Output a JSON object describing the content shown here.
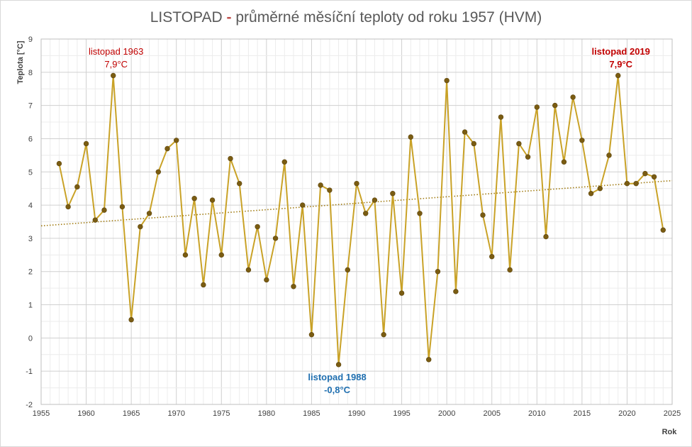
{
  "title_parts": {
    "month": "LISTOPAD",
    "dash": "-",
    "rest": "průměrné měsíční teploty od roku 1957 (HVM)"
  },
  "colors": {
    "line": "#c9a227",
    "marker": "#7a5c12",
    "trend": "#a07a10",
    "grid": "#d9d9d9"
  },
  "chart_data": {
    "type": "line",
    "title": "LISTOPAD - průměrné měsíční teploty od roku 1957 (HVM)",
    "xlabel": "Rok",
    "ylabel": "Teplota  [°C]",
    "xlim": [
      1955,
      2025
    ],
    "ylim": [
      -2,
      9
    ],
    "x_ticks": [
      "1955",
      "1960",
      "1965",
      "1970",
      "1975",
      "1980",
      "1985",
      "1990",
      "1995",
      "2000",
      "2005",
      "2010",
      "2015",
      "2020",
      "2025"
    ],
    "y_ticks": [
      "-2",
      "-1",
      "0",
      "1",
      "2",
      "3",
      "4",
      "5",
      "6",
      "7",
      "8",
      "9"
    ],
    "grid": true,
    "legend": "none",
    "series": [
      {
        "x": [
          1957,
          1958,
          1959,
          1960,
          1961,
          1962,
          1963,
          1964,
          1965,
          1966,
          1967,
          1968,
          1969,
          1970,
          1971,
          1972,
          1973,
          1974,
          1975,
          1976,
          1977,
          1978,
          1979,
          1980,
          1981,
          1982,
          1983,
          1984,
          1985,
          1986,
          1987,
          1988,
          1989,
          1990,
          1991,
          1992,
          1993,
          1994,
          1995,
          1996,
          1997,
          1998,
          1999,
          2000,
          2001,
          2002,
          2003,
          2004,
          2005,
          2006,
          2007,
          2008,
          2009,
          2010,
          2011,
          2012,
          2013,
          2014,
          2015,
          2016,
          2017,
          2018,
          2019,
          2020,
          2021,
          2022,
          2023,
          2024
        ],
        "values": [
          5.25,
          3.95,
          4.55,
          5.85,
          3.55,
          3.85,
          7.9,
          3.95,
          0.55,
          3.35,
          3.75,
          5.0,
          5.7,
          5.95,
          2.5,
          4.2,
          1.6,
          4.15,
          2.5,
          5.4,
          4.65,
          2.05,
          3.35,
          1.75,
          3.0,
          5.3,
          1.55,
          4.0,
          0.1,
          4.6,
          4.45,
          -0.8,
          2.05,
          4.65,
          3.75,
          4.15,
          0.1,
          4.35,
          1.35,
          6.05,
          3.75,
          -0.65,
          2.0,
          7.75,
          1.4,
          6.2,
          5.85,
          3.7,
          2.45,
          6.65,
          2.05,
          5.85,
          5.45,
          6.95,
          3.05,
          7.0,
          5.3,
          7.25,
          5.95,
          4.35,
          4.5,
          5.5,
          7.9,
          4.65,
          4.65,
          4.95,
          4.85,
          3.25
        ]
      }
    ],
    "trendline": {
      "type": "linear",
      "style": "dotted"
    },
    "annotations": [
      {
        "year": 1963,
        "label": "listopad 1963",
        "value": "7,9°C",
        "style": "red"
      },
      {
        "year": 2019,
        "label": "listopad 2019",
        "value": "7,9°C",
        "style": "red-bold"
      },
      {
        "year": 1988,
        "label": "listopad 1988",
        "value": "-0,8°C",
        "style": "blue-bold"
      }
    ]
  }
}
